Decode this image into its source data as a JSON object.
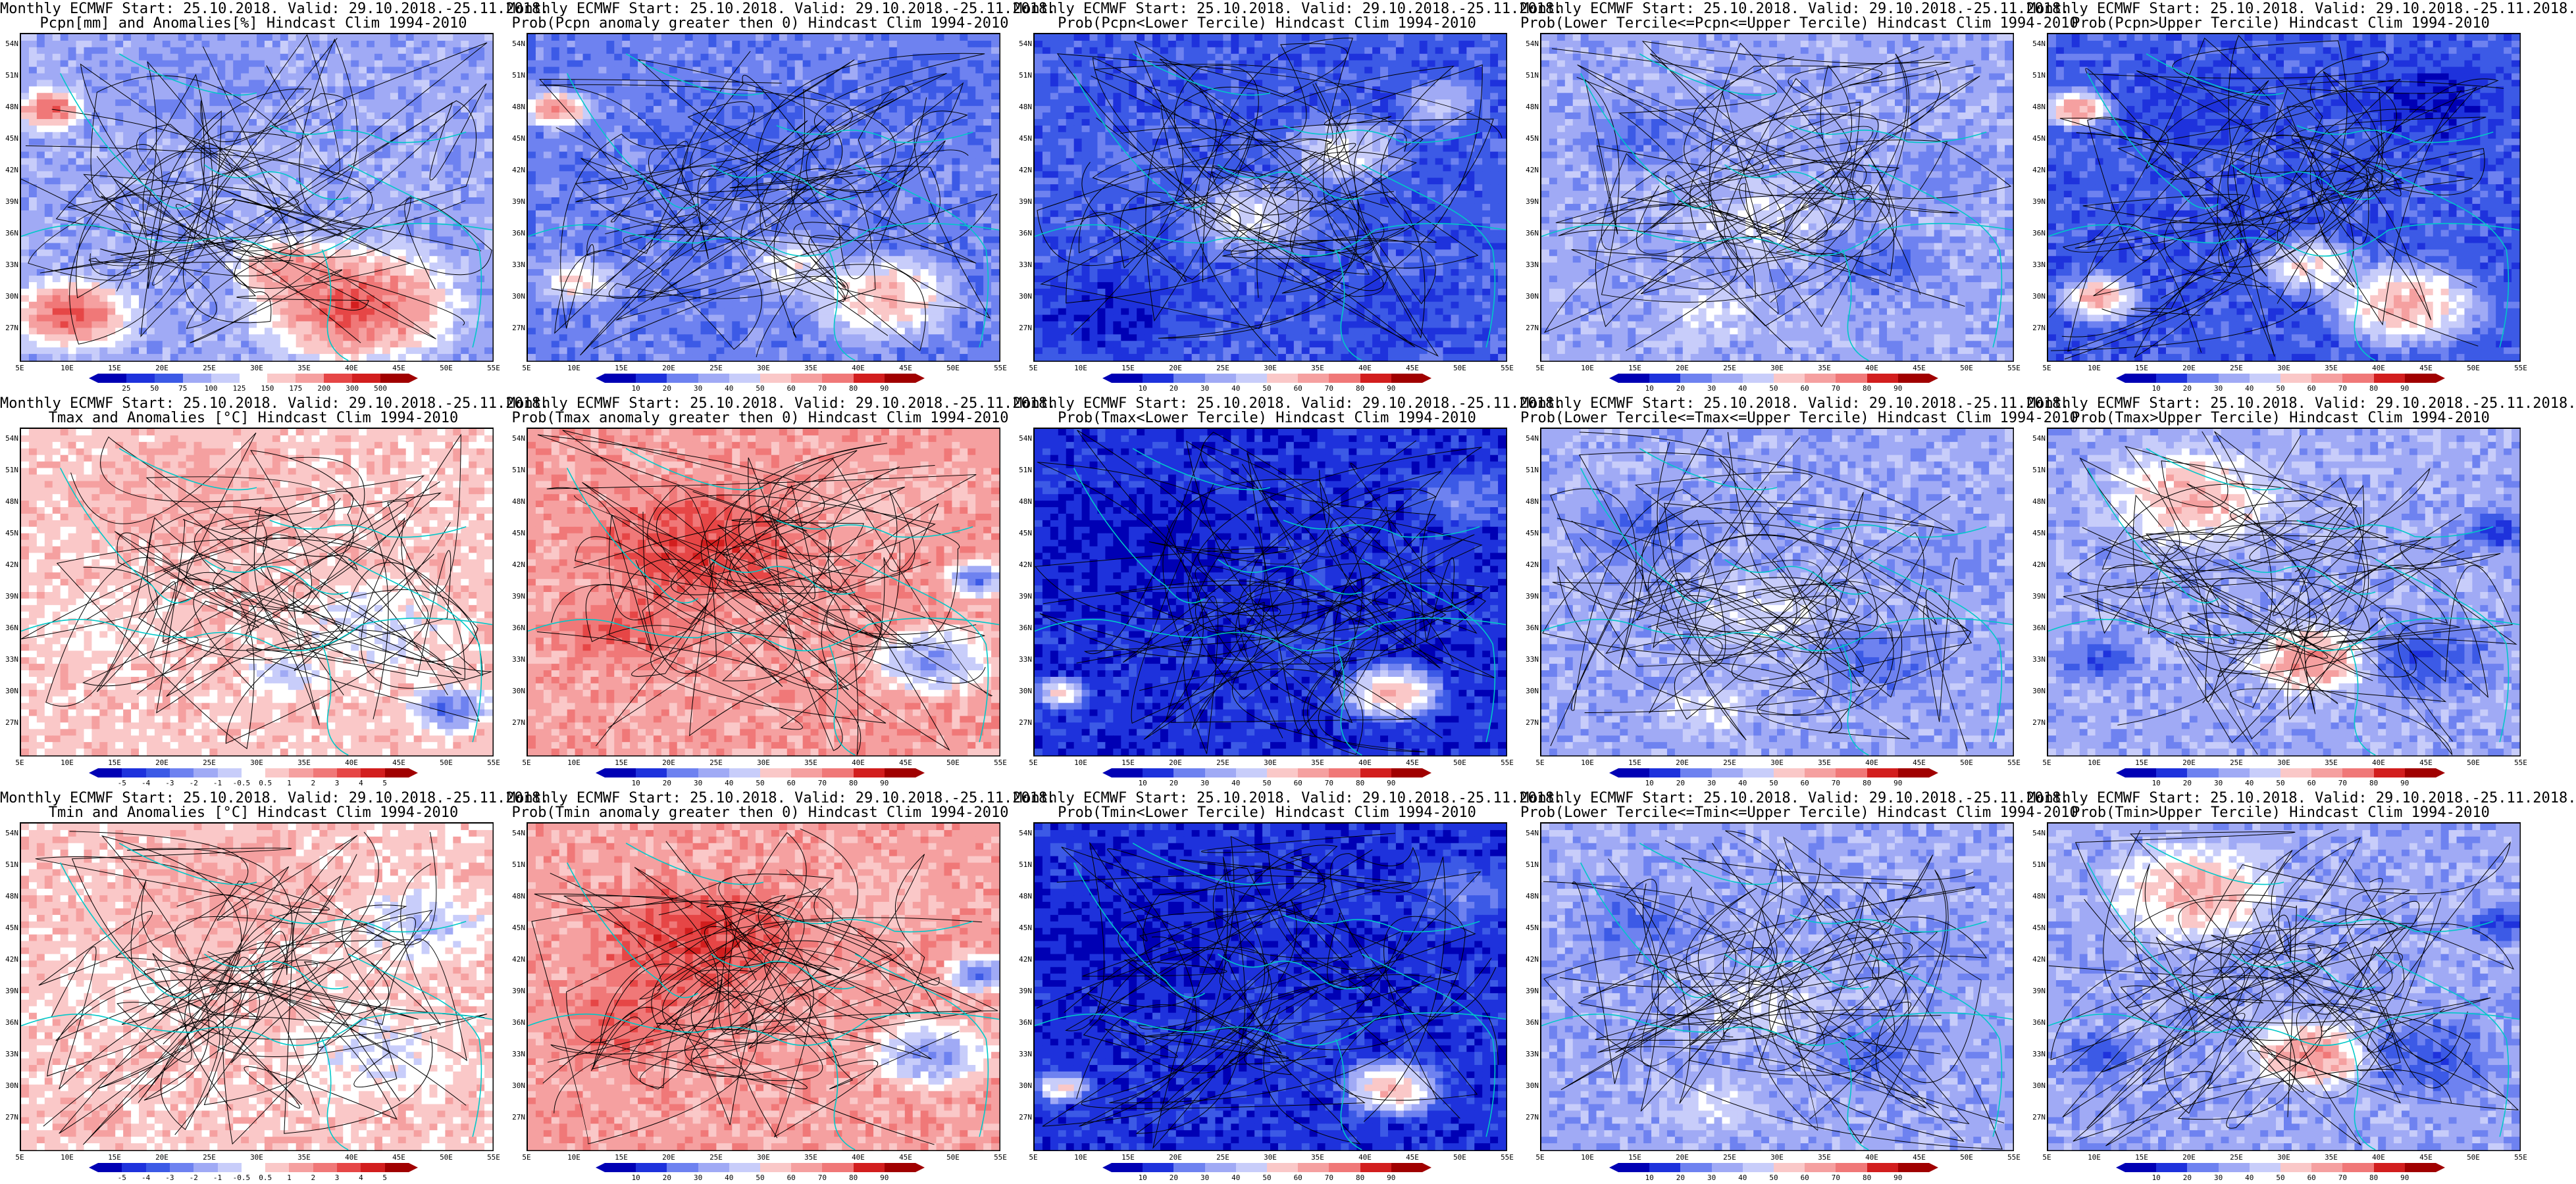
{
  "figure": {
    "columns": 5,
    "rows": 3
  },
  "axes": {
    "lat_labels": [
      "54N",
      "51N",
      "48N",
      "45N",
      "42N",
      "39N",
      "36N",
      "33N",
      "30N",
      "27N"
    ],
    "lon_labels": [
      "5E",
      "10E",
      "15E",
      "20E",
      "25E",
      "30E",
      "35E",
      "40E",
      "45E",
      "50E",
      "55E"
    ]
  },
  "colors": {
    "blues": [
      "#0000b4",
      "#1e32dc",
      "#3c5ae6",
      "#6e82f0",
      "#a0aaf5",
      "#c8cdfa"
    ],
    "reds": [
      "#fac8c8",
      "#f5a0a0",
      "#f07878",
      "#e64646",
      "#d21e1e",
      "#a00000"
    ],
    "white": "#ffffff",
    "coast": "#00c8c8",
    "contour": "#000000"
  },
  "colorbars": {
    "precip": [
      "25",
      "50",
      "75",
      "100",
      "125",
      "150",
      "175",
      "200",
      "300",
      "500"
    ],
    "prob": [
      "10",
      "20",
      "30",
      "40",
      "50",
      "60",
      "70",
      "80",
      "90"
    ],
    "anom": [
      "-5",
      "-4",
      "-3",
      "-2",
      "-1",
      "-0.5",
      "0.5",
      "1",
      "2",
      "3",
      "4",
      "5"
    ]
  },
  "panels": [
    {
      "title1": "Monthly ECMWF Start: 25.10.2018. Valid: 29.10.2018.-25.11.2018.",
      "title2": "Pcpn[mm] and Anomalies[%] Hindcast Clim 1994-2010",
      "cbar": "precip",
      "scheme": "precip_anom"
    },
    {
      "title1": "Monthly ECMWF Start: 25.10.2018. Valid: 29.10.2018.-25.11.2018.",
      "title2": "Prob(Pcpn anomaly greater then 0) Hindcast Clim 1994-2010",
      "cbar": "prob",
      "scheme": "pcpn_pos"
    },
    {
      "title1": "Monthly ECMWF Start: 25.10.2018. Valid: 29.10.2018.-25.11.2018.",
      "title2": "Prob(Pcpn<Lower Tercile) Hindcast Clim 1994-2010",
      "cbar": "prob",
      "scheme": "pcpn_low"
    },
    {
      "title1": "Monthly ECMWF Start: 25.10.2018. Valid: 29.10.2018.-25.11.2018.",
      "title2": "Prob(Lower Tercile<=Pcpn<=Upper Tercile) Hindcast Clim 1994-2010",
      "cbar": "prob",
      "scheme": "mid"
    },
    {
      "title1": "Monthly ECMWF Start: 25.10.2018. Valid: 29.10.2018.-25.11.2018.",
      "title2": "Prob(Pcpn>Upper Tercile) Hindcast Clim 1994-2010",
      "cbar": "prob",
      "scheme": "pcpn_up"
    },
    {
      "title1": "Monthly ECMWF Start: 25.10.2018. Valid: 29.10.2018.-25.11.2018.",
      "title2": "Tmax and Anomalies [°C] Hindcast Clim 1994-2010",
      "cbar": "anom",
      "scheme": "tmax_anom"
    },
    {
      "title1": "Monthly ECMWF Start: 25.10.2018. Valid: 29.10.2018.-25.11.2018.",
      "title2": "Prob(Tmax anomaly greater then 0) Hindcast Clim 1994-2010",
      "cbar": "prob",
      "scheme": "warm_pos"
    },
    {
      "title1": "Monthly ECMWF Start: 25.10.2018. Valid: 29.10.2018.-25.11.2018.",
      "title2": "Prob(Tmax<Lower Tercile) Hindcast Clim 1994-2010",
      "cbar": "prob",
      "scheme": "cold_low"
    },
    {
      "title1": "Monthly ECMWF Start: 25.10.2018. Valid: 29.10.2018.-25.11.2018.",
      "title2": "Prob(Lower Tercile<=Tmax<=Upper Tercile) Hindcast Clim 1994-2010",
      "cbar": "prob",
      "scheme": "mid"
    },
    {
      "title1": "Monthly ECMWF Start: 25.10.2018. Valid: 29.10.2018.-25.11.2018.",
      "title2": "Prob(Tmax>Upper Tercile) Hindcast Clim 1994-2010",
      "cbar": "prob",
      "scheme": "warm_up"
    },
    {
      "title1": "Monthly ECMWF Start: 25.10.2018. Valid: 29.10.2018.-25.11.2018.",
      "title2": "Tmin and Anomalies [°C] Hindcast Clim 1994-2010",
      "cbar": "anom",
      "scheme": "tmin_anom"
    },
    {
      "title1": "Monthly ECMWF Start: 25.10.2018. Valid: 29.10.2018.-25.11.2018.",
      "title2": "Prob(Tmin anomaly greater then 0) Hindcast Clim 1994-2010",
      "cbar": "prob",
      "scheme": "warm_pos"
    },
    {
      "title1": "Monthly ECMWF Start: 25.10.2018. Valid: 29.10.2018.-25.11.2018.",
      "title2": "Prob(Tmin<Lower Tercile) Hindcast Clim 1994-2010",
      "cbar": "prob",
      "scheme": "cold_low"
    },
    {
      "title1": "Monthly ECMWF Start: 25.10.2018. Valid: 29.10.2018.-25.11.2018.",
      "title2": "Prob(Lower Tercile<=Tmin<=Upper Tercile) Hindcast Clim 1994-2010",
      "cbar": "prob",
      "scheme": "mid"
    },
    {
      "title1": "Monthly ECMWF Start: 25.10.2018. Valid: 29.10.2018.-25.11.2018.",
      "title2": "Prob(Tmin>Upper Tercile) Hindcast Clim 1994-2010",
      "cbar": "prob",
      "scheme": "warm_up"
    }
  ]
}
